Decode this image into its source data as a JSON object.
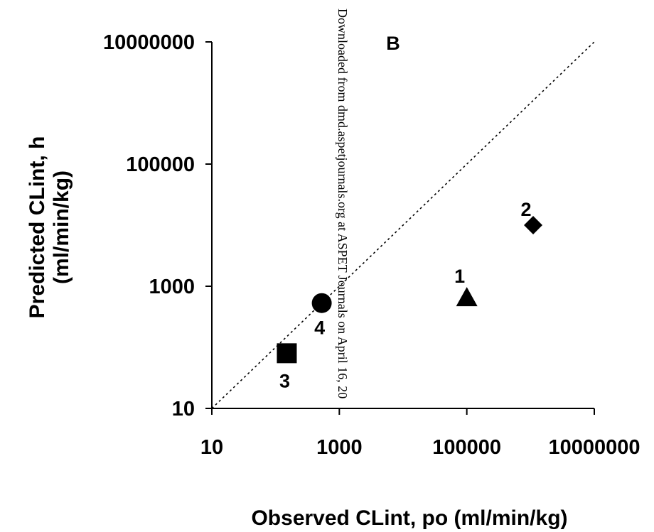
{
  "chart_data": {
    "type": "scatter",
    "panel_label": "B",
    "xlabel": "Observed CLint, po (ml/min/kg)",
    "ylabel": [
      "Predicted CLint, h",
      "(ml/min/kg)"
    ],
    "xscale": "log",
    "yscale": "log",
    "xlim": [
      10,
      10000000
    ],
    "ylim": [
      10,
      10000000
    ],
    "x_ticks": [
      10,
      1000,
      100000,
      10000000
    ],
    "y_ticks": [
      10,
      1000,
      100000,
      10000000
    ],
    "x_tick_labels": [
      "10",
      "1000",
      "100000",
      "10000000"
    ],
    "y_tick_labels": [
      "10",
      "1000",
      "100000",
      "10000000"
    ],
    "grid": false,
    "identity_line": {
      "style": "dotted",
      "from": [
        10,
        10
      ],
      "to": [
        10000000,
        10000000
      ]
    },
    "points": [
      {
        "label": "1",
        "marker": "triangle",
        "x": 100000,
        "y": 650,
        "color": "#000000"
      },
      {
        "label": "2",
        "marker": "diamond",
        "x": 1100000,
        "y": 10000,
        "color": "#000000"
      },
      {
        "label": "3",
        "marker": "square",
        "x": 150,
        "y": 80,
        "color": "#000000"
      },
      {
        "label": "4",
        "marker": "circle",
        "x": 530,
        "y": 530,
        "color": "#000000"
      }
    ]
  },
  "watermark": "Downloaded from dmd.aspetjournals.org at ASPET Journals on April 16, 20"
}
